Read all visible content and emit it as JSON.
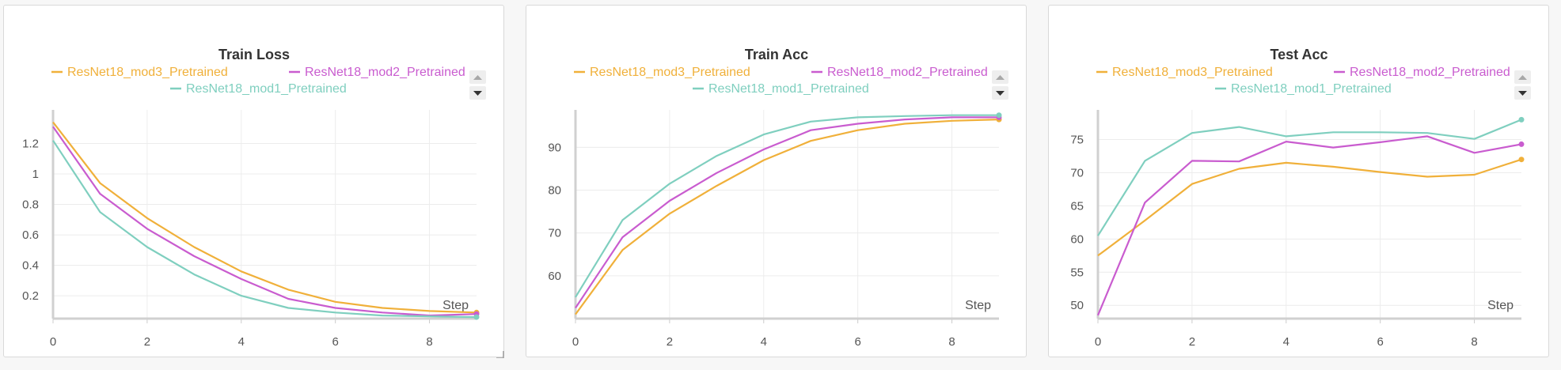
{
  "colors": {
    "ResNet18_mod3_Pretrained": "#f0b03a",
    "ResNet18_mod2_Pretrained": "#c95ccf",
    "ResNet18_mod1_Pretrained": "#7fcfbf"
  },
  "legend_scroll": {
    "up_icon": "triangle-up-icon",
    "down_icon": "triangle-down-icon"
  },
  "chart_data": [
    {
      "type": "line",
      "title": "Train Loss",
      "xlabel": "Step",
      "ylabel": "",
      "x": [
        0,
        1,
        2,
        3,
        4,
        5,
        6,
        7,
        8,
        9
      ],
      "xlim": [
        0,
        9
      ],
      "ylim": [
        0.05,
        1.4
      ],
      "xticks": [
        0,
        2,
        4,
        6,
        8
      ],
      "yticks": [
        0.2,
        0.4,
        0.6,
        0.8,
        1,
        1.2
      ],
      "grid": true,
      "legend_position": "top",
      "series": [
        {
          "name": "ResNet18_mod3_Pretrained",
          "values": [
            1.34,
            0.94,
            0.71,
            0.52,
            0.36,
            0.24,
            0.16,
            0.12,
            0.1,
            0.09
          ]
        },
        {
          "name": "ResNet18_mod2_Pretrained",
          "values": [
            1.31,
            0.87,
            0.64,
            0.46,
            0.31,
            0.18,
            0.12,
            0.09,
            0.07,
            0.08
          ]
        },
        {
          "name": "ResNet18_mod1_Pretrained",
          "values": [
            1.22,
            0.75,
            0.52,
            0.34,
            0.2,
            0.12,
            0.09,
            0.07,
            0.065,
            0.06
          ]
        }
      ]
    },
    {
      "type": "line",
      "title": "Train Acc",
      "xlabel": "Step",
      "ylabel": "",
      "x": [
        0,
        1,
        2,
        3,
        4,
        5,
        6,
        7,
        8,
        9
      ],
      "xlim": [
        0,
        9
      ],
      "ylim": [
        50,
        98
      ],
      "xticks": [
        0,
        2,
        4,
        6,
        8
      ],
      "yticks": [
        60,
        70,
        80,
        90
      ],
      "grid": true,
      "legend_position": "top",
      "series": [
        {
          "name": "ResNet18_mod3_Pretrained",
          "values": [
            51,
            66,
            74.5,
            81,
            87,
            91.5,
            94,
            95.5,
            96.2,
            96.5
          ]
        },
        {
          "name": "ResNet18_mod2_Pretrained",
          "values": [
            52.5,
            69,
            77.5,
            84,
            89.5,
            94,
            95.5,
            96.5,
            97,
            97
          ]
        },
        {
          "name": "ResNet18_mod1_Pretrained",
          "values": [
            55,
            73,
            81.5,
            88,
            93,
            96,
            97,
            97.3,
            97.5,
            97.5
          ]
        }
      ]
    },
    {
      "type": "line",
      "title": "Test Acc",
      "xlabel": "Step",
      "ylabel": "",
      "x": [
        0,
        1,
        2,
        3,
        4,
        5,
        6,
        7,
        8,
        9
      ],
      "xlim": [
        0,
        9
      ],
      "ylim": [
        48,
        79
      ],
      "xticks": [
        0,
        2,
        4,
        6,
        8
      ],
      "yticks": [
        50,
        55,
        60,
        65,
        70,
        75
      ],
      "grid": true,
      "legend_position": "top",
      "series": [
        {
          "name": "ResNet18_mod3_Pretrained",
          "values": [
            57.5,
            62.8,
            68.3,
            70.6,
            71.5,
            70.9,
            70.1,
            69.4,
            69.7,
            72
          ]
        },
        {
          "name": "ResNet18_mod2_Pretrained",
          "values": [
            48.5,
            65.5,
            71.8,
            71.7,
            74.7,
            73.8,
            74.6,
            75.5,
            73,
            74.3
          ]
        },
        {
          "name": "ResNet18_mod1_Pretrained",
          "values": [
            60.5,
            71.8,
            76,
            76.9,
            75.5,
            76.1,
            76.1,
            76,
            75.1,
            78
          ]
        }
      ]
    }
  ]
}
